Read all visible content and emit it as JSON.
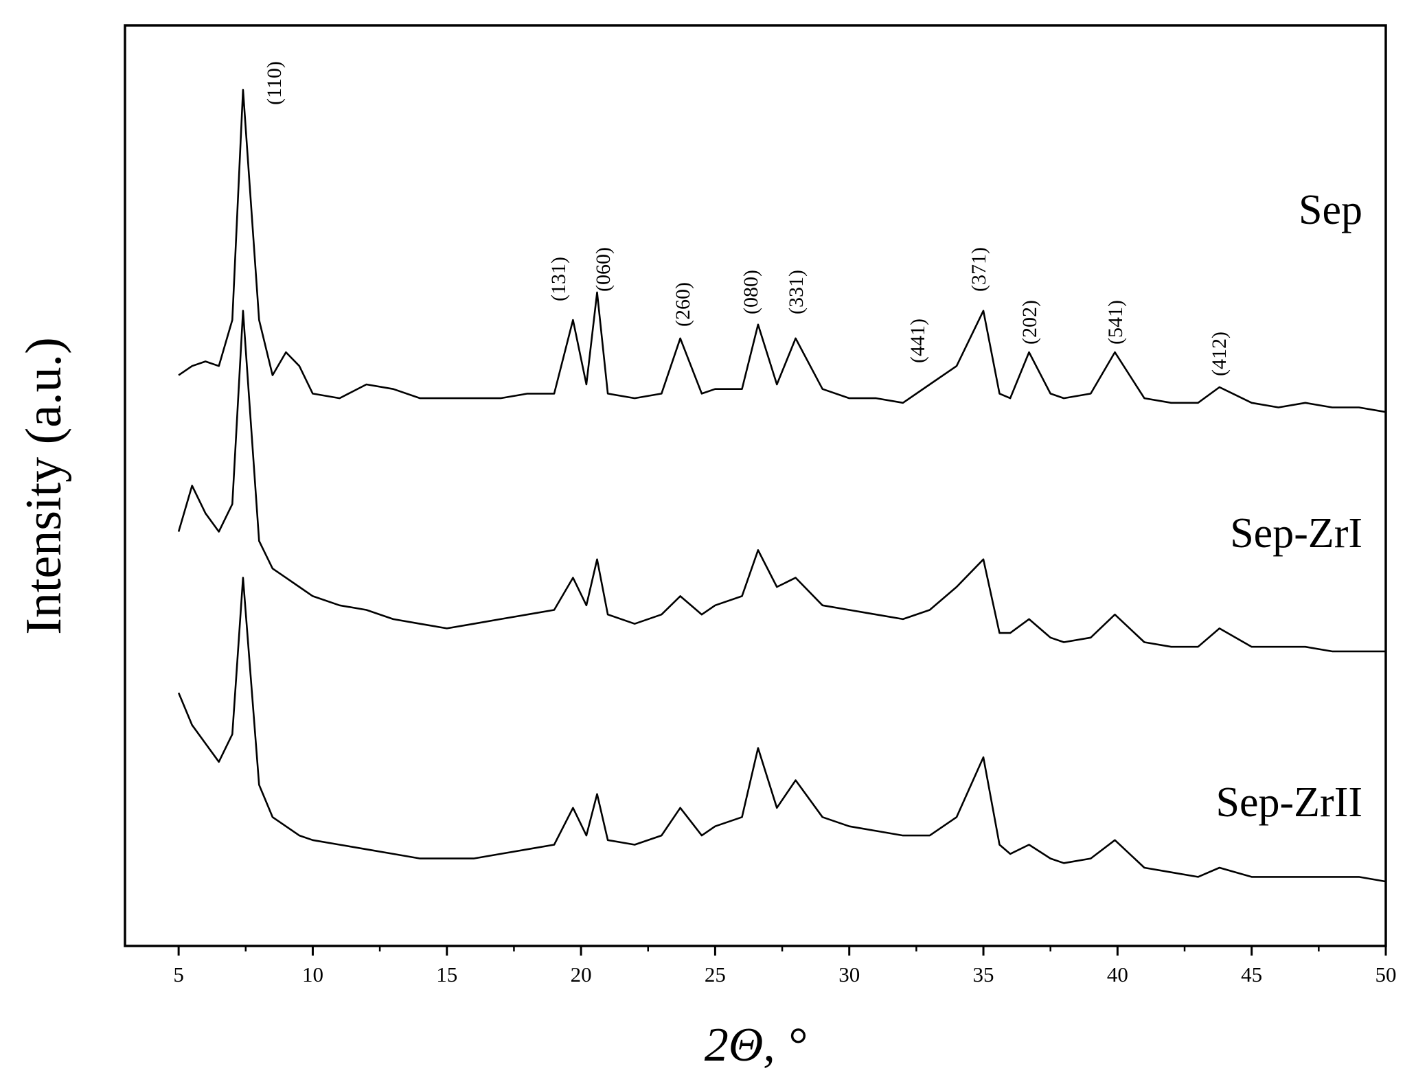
{
  "chart_data": {
    "type": "line",
    "ylabel": "Intensity (a.u.)",
    "xlabel": "2Θ, °",
    "xlim": [
      3,
      50
    ],
    "xticks": [
      5,
      10,
      15,
      20,
      25,
      30,
      35,
      40,
      45,
      50
    ],
    "ylim": [
      0,
      100
    ],
    "annotations": [
      "(110)",
      "(131)",
      "(060)",
      "(260)",
      "(080)",
      "(331)",
      "(441)",
      "(371)",
      "(202)",
      "(541)",
      "(412)"
    ],
    "x": [
      5,
      5.5,
      6,
      6.5,
      7,
      7.4,
      8,
      8.5,
      9,
      9.5,
      10,
      11,
      12,
      13,
      14,
      15,
      16,
      17,
      18,
      19,
      19.7,
      20.2,
      20.6,
      21,
      22,
      23,
      23.7,
      24.5,
      25,
      26,
      26.6,
      27.3,
      28,
      29,
      30,
      31,
      32,
      33,
      34,
      35,
      35.6,
      36,
      36.7,
      37.5,
      38,
      39,
      39.9,
      41,
      42,
      43,
      43.8,
      45,
      46,
      47,
      48,
      49,
      50
    ],
    "series": [
      {
        "name": "Sep",
        "color": "#000000",
        "values": [
          62,
          63,
          63.5,
          63,
          68,
          93,
          68,
          62,
          64.5,
          63,
          60,
          59.5,
          61,
          60.5,
          59.5,
          59.5,
          59.5,
          59.5,
          60,
          60,
          68,
          61,
          71,
          60,
          59.5,
          60,
          66,
          60,
          60.5,
          60.5,
          67.5,
          61,
          66,
          60.5,
          59.5,
          59.5,
          59,
          61,
          63,
          69,
          60,
          59.5,
          64.5,
          60,
          59.5,
          60,
          64.5,
          59.5,
          59,
          59,
          60.7,
          59,
          58.5,
          59,
          58.5,
          58.5,
          58
        ]
      },
      {
        "name": "Sep-ZrI",
        "color": "#000000",
        "values": [
          45,
          50,
          47,
          45,
          48,
          69,
          44,
          41,
          40,
          39,
          38,
          37,
          36.5,
          35.5,
          35,
          34.5,
          35,
          35.5,
          36,
          36.5,
          40,
          37,
          42,
          36,
          35,
          36,
          38,
          36,
          37,
          38,
          43,
          39,
          40,
          37,
          36.5,
          36,
          35.5,
          36.5,
          39,
          42,
          34,
          34,
          35.5,
          33.5,
          33,
          33.5,
          36,
          33,
          32.5,
          32.5,
          34.5,
          32.5,
          32.5,
          32.5,
          32,
          32,
          32
        ]
      },
      {
        "name": "Sep-ZrII",
        "color": "#000000",
        "values": [
          27.5,
          24,
          22,
          20,
          23,
          40,
          17.5,
          14,
          13,
          12,
          11.5,
          11,
          10.5,
          10,
          9.5,
          9.5,
          9.5,
          10,
          10.5,
          11,
          15,
          12,
          16.5,
          11.5,
          11,
          12,
          15,
          12,
          13,
          14,
          21.5,
          15,
          18,
          14,
          13,
          12.5,
          12,
          12,
          14,
          20.5,
          11,
          10,
          11,
          9.5,
          9,
          9.5,
          11.5,
          8.5,
          8,
          7.5,
          8.5,
          7.5,
          7.5,
          7.5,
          7.5,
          7.5,
          7
        ]
      }
    ]
  }
}
